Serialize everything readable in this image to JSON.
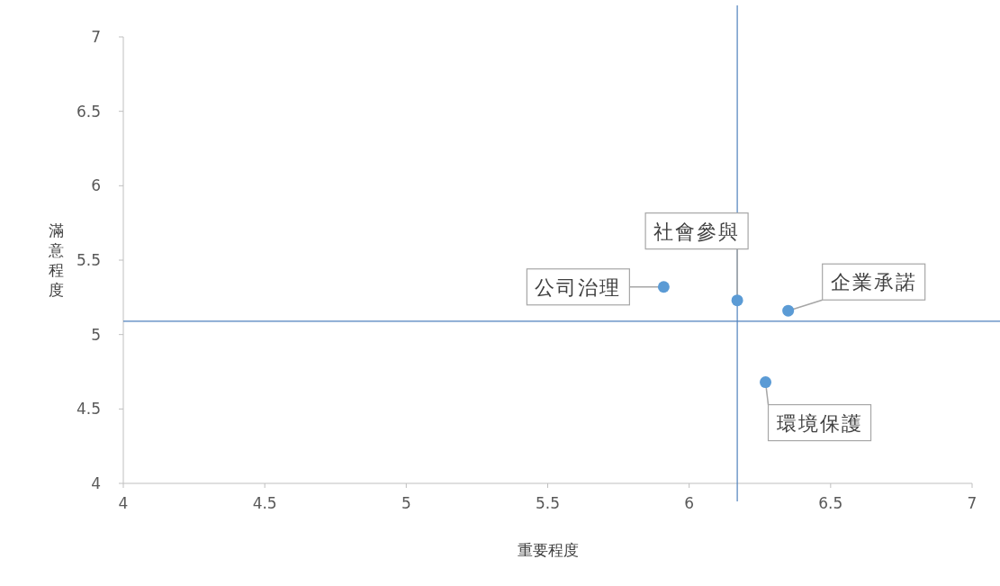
{
  "chart_data": {
    "type": "scatter",
    "xlabel": "重要程度",
    "ylabel": "滿意程度",
    "x": [
      5.91,
      6.17,
      6.35,
      6.27
    ],
    "series": [
      {
        "color": "#5b9bd5",
        "values": [
          5.32,
          5.23,
          5.16,
          4.68
        ]
      }
    ],
    "marker": "circle",
    "grid": false,
    "xlim": [
      4,
      7
    ],
    "xticks": [
      4,
      4.5,
      5,
      5.5,
      6,
      6.5,
      7
    ],
    "ylim": [
      4,
      7
    ],
    "yticks": [
      4,
      4.5,
      5,
      5.5,
      6,
      6.5,
      7
    ],
    "ref_lines": [
      {
        "axis": "x",
        "value": 6.17,
        "color": "#4f81bd"
      },
      {
        "axis": "y",
        "value": 5.09,
        "color": "#4f81bd"
      }
    ],
    "annotations": [
      {
        "text": "公司治理",
        "x": 5.91,
        "y": 5.32
      },
      {
        "text": "社會參與",
        "x": 6.17,
        "y": 5.23
      },
      {
        "text": "企業承諾",
        "x": 6.35,
        "y": 5.16
      },
      {
        "text": "環境保護",
        "x": 6.27,
        "y": 4.68
      }
    ]
  }
}
